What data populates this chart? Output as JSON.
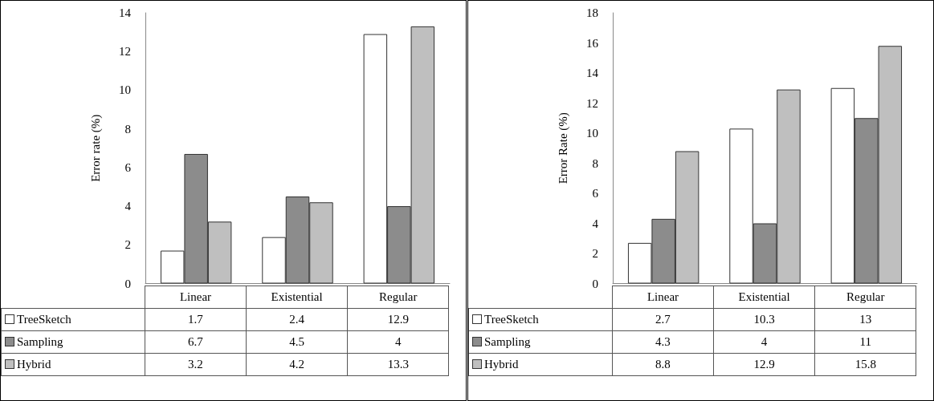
{
  "chart_data": [
    {
      "type": "bar",
      "ylabel": "Error rate (%)",
      "categories": [
        "Linear",
        "Existential",
        "Regular"
      ],
      "series": [
        {
          "name": "TreeSketch",
          "color": "#ffffff",
          "values": [
            1.7,
            2.4,
            12.9
          ]
        },
        {
          "name": "Sampling",
          "color": "#8c8c8c",
          "values": [
            6.7,
            4.5,
            4
          ]
        },
        {
          "name": "Hybrid",
          "color": "#bfbfbf",
          "values": [
            3.2,
            4.2,
            13.3
          ]
        }
      ],
      "ylim": [
        0,
        14
      ],
      "yticks": [
        0,
        2,
        4,
        6,
        8,
        10,
        12,
        14
      ],
      "grid": false,
      "legend": "bottom left",
      "data_labels": true
    },
    {
      "type": "bar",
      "ylabel": "Error Rate (%)",
      "categories": [
        "Linear",
        "Existential",
        "Regular"
      ],
      "series": [
        {
          "name": "TreeSketch",
          "color": "#ffffff",
          "values": [
            2.7,
            10.3,
            13
          ]
        },
        {
          "name": "Sampling",
          "color": "#8c8c8c",
          "values": [
            4.3,
            4,
            11
          ]
        },
        {
          "name": "Hybrid",
          "color": "#bfbfbf",
          "values": [
            8.8,
            12.9,
            15.8
          ]
        }
      ],
      "ylim": [
        0,
        18
      ],
      "yticks": [
        0,
        2,
        4,
        6,
        8,
        10,
        12,
        14,
        16,
        18
      ],
      "grid": false,
      "legend": "bottom left",
      "data_labels": true
    }
  ]
}
